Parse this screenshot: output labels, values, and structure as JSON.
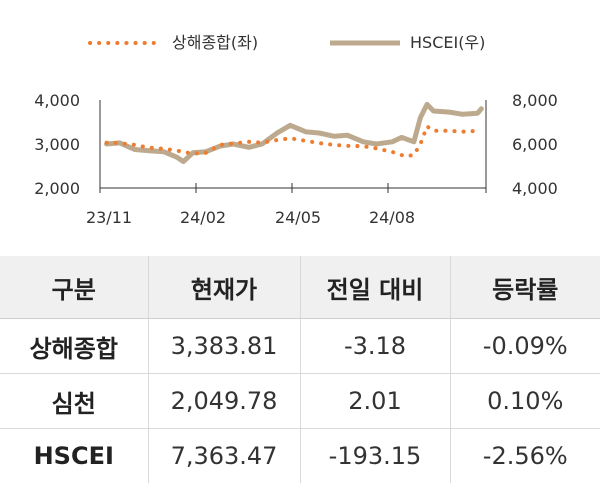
{
  "chart_data": {
    "type": "line",
    "x_ticks": [
      "23/11",
      "24/02",
      "24/05",
      "24/08"
    ],
    "y_left": {
      "ticks": [
        "2,000",
        "3,000",
        "4,000"
      ],
      "range": [
        2000,
        4000
      ]
    },
    "y_right": {
      "ticks": [
        "4,000",
        "6,000",
        "8,000"
      ],
      "range": [
        4000,
        8000
      ]
    },
    "legend_position": "top",
    "grid": false,
    "series": [
      {
        "name": "상해종합(좌)",
        "axis": "left",
        "style": "dotted",
        "color": "#ED7D31",
        "x": [
          "2023-11-01",
          "2023-11-15",
          "2023-12-01",
          "2023-12-15",
          "2024-01-01",
          "2024-01-15",
          "2024-02-01",
          "2024-02-15",
          "2024-03-01",
          "2024-03-15",
          "2024-04-01",
          "2024-04-15",
          "2024-05-01",
          "2024-05-15",
          "2024-06-01",
          "2024-06-15",
          "2024-07-01",
          "2024-07-15",
          "2024-08-01",
          "2024-08-15",
          "2024-09-01",
          "2024-09-15",
          "2024-09-24",
          "2024-10-01",
          "2024-10-08",
          "2024-10-15",
          "2024-11-01",
          "2024-11-15",
          "2024-12-01",
          "2024-12-05"
        ],
        "values": [
          3030,
          3020,
          2980,
          2920,
          2890,
          2850,
          2780,
          2800,
          2980,
          3010,
          3050,
          3030,
          3090,
          3130,
          3070,
          3020,
          2980,
          2960,
          2950,
          2900,
          2820,
          2720,
          2750,
          3000,
          3400,
          3300,
          3300,
          3280,
          3300,
          3270
        ]
      },
      {
        "name": "HSCEI(우)",
        "axis": "right",
        "style": "solid",
        "color": "#BDAA8E",
        "x": [
          "2023-11-01",
          "2023-11-15",
          "2023-12-01",
          "2023-12-15",
          "2024-01-01",
          "2024-01-15",
          "2024-01-22",
          "2024-02-01",
          "2024-02-15",
          "2024-03-01",
          "2024-03-15",
          "2024-04-01",
          "2024-04-15",
          "2024-05-01",
          "2024-05-15",
          "2024-06-01",
          "2024-06-15",
          "2024-07-01",
          "2024-07-15",
          "2024-08-01",
          "2024-08-15",
          "2024-09-01",
          "2024-09-11",
          "2024-09-24",
          "2024-10-01",
          "2024-10-08",
          "2024-10-15",
          "2024-11-01",
          "2024-11-15",
          "2024-12-01",
          "2024-12-05"
        ],
        "values": [
          6000,
          6050,
          5750,
          5700,
          5650,
          5400,
          5200,
          5600,
          5650,
          5900,
          6000,
          5850,
          6000,
          6500,
          6850,
          6550,
          6500,
          6350,
          6400,
          6100,
          6000,
          6100,
          6300,
          6100,
          7200,
          7800,
          7500,
          7450,
          7350,
          7400,
          7600
        ]
      }
    ]
  },
  "table": {
    "headers": [
      "구분",
      "현재가",
      "전일 대비",
      "등락률"
    ],
    "rows": [
      [
        "상해종합",
        "3,383.81",
        "-3.18",
        "-0.09%"
      ],
      [
        "심천",
        "2,049.78",
        "2.01",
        "0.10%"
      ],
      [
        "HSCEI",
        "7,363.47",
        "-193.15",
        "-2.56%"
      ]
    ]
  }
}
